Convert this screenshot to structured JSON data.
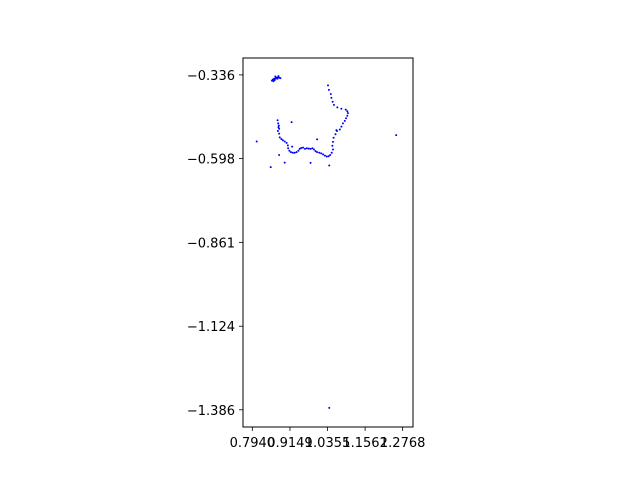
{
  "chart_data": {
    "type": "scatter",
    "title": "",
    "xlabel": "",
    "ylabel": "",
    "xlim": [
      0.764,
      1.31
    ],
    "ylim": [
      -1.44,
      -0.283
    ],
    "xticks": [
      0.794,
      0.9149,
      1.0355,
      1.1562,
      1.2768
    ],
    "xtick_labels": [
      "0.7940",
      "0.9149",
      "1.0355",
      "1.1562",
      "1.2768"
    ],
    "yticks": [
      -0.336,
      -0.598,
      -0.861,
      -1.124,
      -1.386
    ],
    "ytick_labels": [
      "−0.336",
      "−0.598",
      "−0.861",
      "−1.124",
      "−1.386"
    ],
    "grid": false,
    "marker_color": "#0000ff",
    "series": [
      {
        "points": [
          [
            0.857,
            -0.354
          ],
          [
            0.861,
            -0.35
          ],
          [
            0.864,
            -0.348
          ],
          [
            0.868,
            -0.347
          ],
          [
            0.872,
            -0.345
          ],
          [
            0.876,
            -0.344
          ],
          [
            0.88,
            -0.345
          ],
          [
            0.884,
            -0.346
          ],
          [
            0.878,
            -0.34
          ],
          [
            0.868,
            -0.341
          ],
          [
            0.859,
            -0.352
          ],
          [
            0.862,
            -0.356
          ],
          [
            0.866,
            -0.352
          ],
          [
            0.874,
            -0.348
          ],
          [
            0.875,
            -0.478
          ],
          [
            0.877,
            -0.488
          ],
          [
            0.879,
            -0.495
          ],
          [
            0.878,
            -0.5
          ],
          [
            0.88,
            -0.505
          ],
          [
            0.876,
            -0.512
          ],
          [
            0.88,
            -0.52
          ],
          [
            0.882,
            -0.532
          ],
          [
            0.887,
            -0.537
          ],
          [
            0.892,
            -0.541
          ],
          [
            0.898,
            -0.545
          ],
          [
            0.904,
            -0.549
          ],
          [
            0.908,
            -0.557
          ],
          [
            0.909,
            -0.566
          ],
          [
            0.913,
            -0.574
          ],
          [
            0.918,
            -0.578
          ],
          [
            0.924,
            -0.58
          ],
          [
            0.93,
            -0.58
          ],
          [
            0.936,
            -0.578
          ],
          [
            0.942,
            -0.574
          ],
          [
            0.946,
            -0.568
          ],
          [
            0.951,
            -0.565
          ],
          [
            0.957,
            -0.564
          ],
          [
            0.963,
            -0.568
          ],
          [
            0.969,
            -0.566
          ],
          [
            0.975,
            -0.567
          ],
          [
            0.981,
            -0.568
          ],
          [
            0.987,
            -0.566
          ],
          [
            0.992,
            -0.57
          ],
          [
            0.997,
            -0.575
          ],
          [
            1.002,
            -0.578
          ],
          [
            1.009,
            -0.58
          ],
          [
            1.015,
            -0.582
          ],
          [
            1.021,
            -0.585
          ],
          [
            1.027,
            -0.589
          ],
          [
            1.033,
            -0.592
          ],
          [
            1.039,
            -0.591
          ],
          [
            1.044,
            -0.587
          ],
          [
            1.049,
            -0.58
          ],
          [
            1.053,
            -0.57
          ],
          [
            1.051,
            -0.558
          ],
          [
            1.053,
            -0.546
          ],
          [
            1.055,
            -0.533
          ],
          [
            1.061,
            -0.522
          ],
          [
            1.066,
            -0.512
          ],
          [
            1.075,
            -0.507
          ],
          [
            1.08,
            -0.498
          ],
          [
            1.085,
            -0.488
          ],
          [
            1.091,
            -0.48
          ],
          [
            1.095,
            -0.472
          ],
          [
            1.099,
            -0.464
          ],
          [
            1.101,
            -0.456
          ],
          [
            1.099,
            -0.45
          ],
          [
            1.046,
            -0.396
          ],
          [
            1.048,
            -0.408
          ],
          [
            1.052,
            -0.42
          ],
          [
            1.056,
            -0.43
          ],
          [
            1.067,
            -0.438
          ],
          [
            1.08,
            -0.442
          ],
          [
            1.094,
            -0.445
          ],
          [
            1.037,
            -0.369
          ],
          [
            1.04,
            -0.383
          ],
          [
            0.808,
            -0.545
          ],
          [
            0.853,
            -0.625
          ],
          [
            0.898,
            -0.611
          ],
          [
            0.88,
            -0.587
          ],
          [
            0.92,
            -0.484
          ],
          [
            1.002,
            -0.538
          ],
          [
            1.041,
            -0.62
          ],
          [
            0.981,
            -0.612
          ],
          [
            1.256,
            -0.525
          ],
          [
            1.041,
            -1.38
          ],
          [
            0.922,
            -0.561
          ],
          [
            1.064,
            -0.509
          ]
        ]
      }
    ]
  }
}
